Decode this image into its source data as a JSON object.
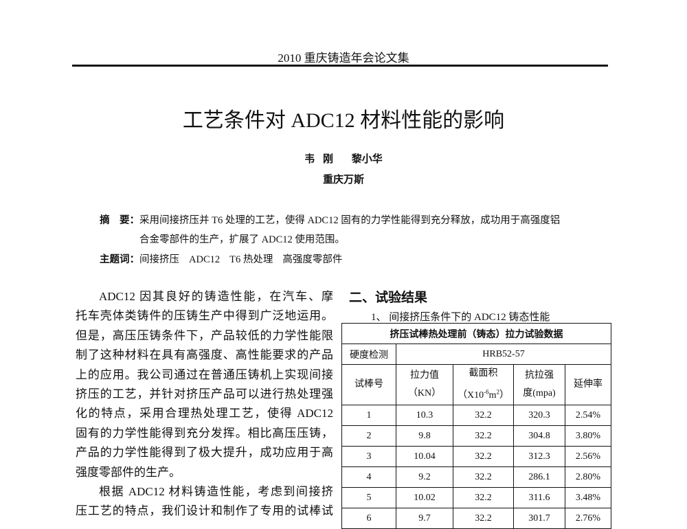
{
  "running_head": "2010 重庆铸造年会论文集",
  "title": "工艺条件对 ADC12 材料性能的影响",
  "authors": [
    "韦 刚",
    "黎小华"
  ],
  "affiliation": "重庆万斯",
  "abstract": {
    "label": "摘　要：",
    "line1": "采用间接挤压并 T6 处理的工艺，使得 ADC12 固有的力学性能得到充分释放，成功用于高强度铝",
    "line2": "合金零部件的生产，扩展了 ADC12 使用范围。"
  },
  "keywords": {
    "label": "主题词：",
    "items": [
      "间接挤压",
      "ADC12",
      "T6 热处理",
      "高强度零部件"
    ]
  },
  "body_lines": [
    "ADC12 因其良好的铸造性能，在汽车、摩",
    "托车壳体类铸件的压铸生产中得到广泛地运用。",
    "但是，高压压铸条件下，产品较低的力学性能限",
    "制了这种材料在具有高强度、高性能要求的产品",
    "上的应用。我公司通过在普通压铸机上实现间接",
    "挤压的工艺，并针对挤压产品可以进行热处理强",
    "化的特点，采用合理热处理工艺，使得 ADC12",
    "固有的力学性能得到充分发挥。相比高压压铸，",
    "产品的力学性能得到了极大提升，成功应用于高",
    "强度零部件的生产。",
    "根据 ADC12 材料铸造性能，考虑到间接挤",
    "压工艺的特点，我们设计和制作了专用的试棒试"
  ],
  "section_heading": "二、试验结果",
  "table": {
    "caption": "1、 间接挤压条件下的 ADC12 铸态性能",
    "title": "挤压试棒热处理前（铸态）拉力试验数据",
    "hardness_label": "硬度检测",
    "hardness_value": "HRB52-57",
    "headers": [
      "试棒号",
      "拉力值",
      "（KN）",
      "截面积",
      "（X10",
      "-6",
      "m",
      "2",
      "）",
      "抗拉强",
      "度(mpa)",
      "延伸率"
    ],
    "rows": [
      [
        "1",
        "10.3",
        "32.2",
        "320.3",
        "2.54%"
      ],
      [
        "2",
        "9.8",
        "32.2",
        "304.8",
        "3.80%"
      ],
      [
        "3",
        "10.04",
        "32.2",
        "312.3",
        "2.56%"
      ],
      [
        "4",
        "9.2",
        "32.2",
        "286.1",
        "2.80%"
      ],
      [
        "5",
        "10.02",
        "32.2",
        "311.6",
        "3.48%"
      ],
      [
        "6",
        "9.7",
        "32.2",
        "301.7",
        "2.76%"
      ]
    ]
  }
}
